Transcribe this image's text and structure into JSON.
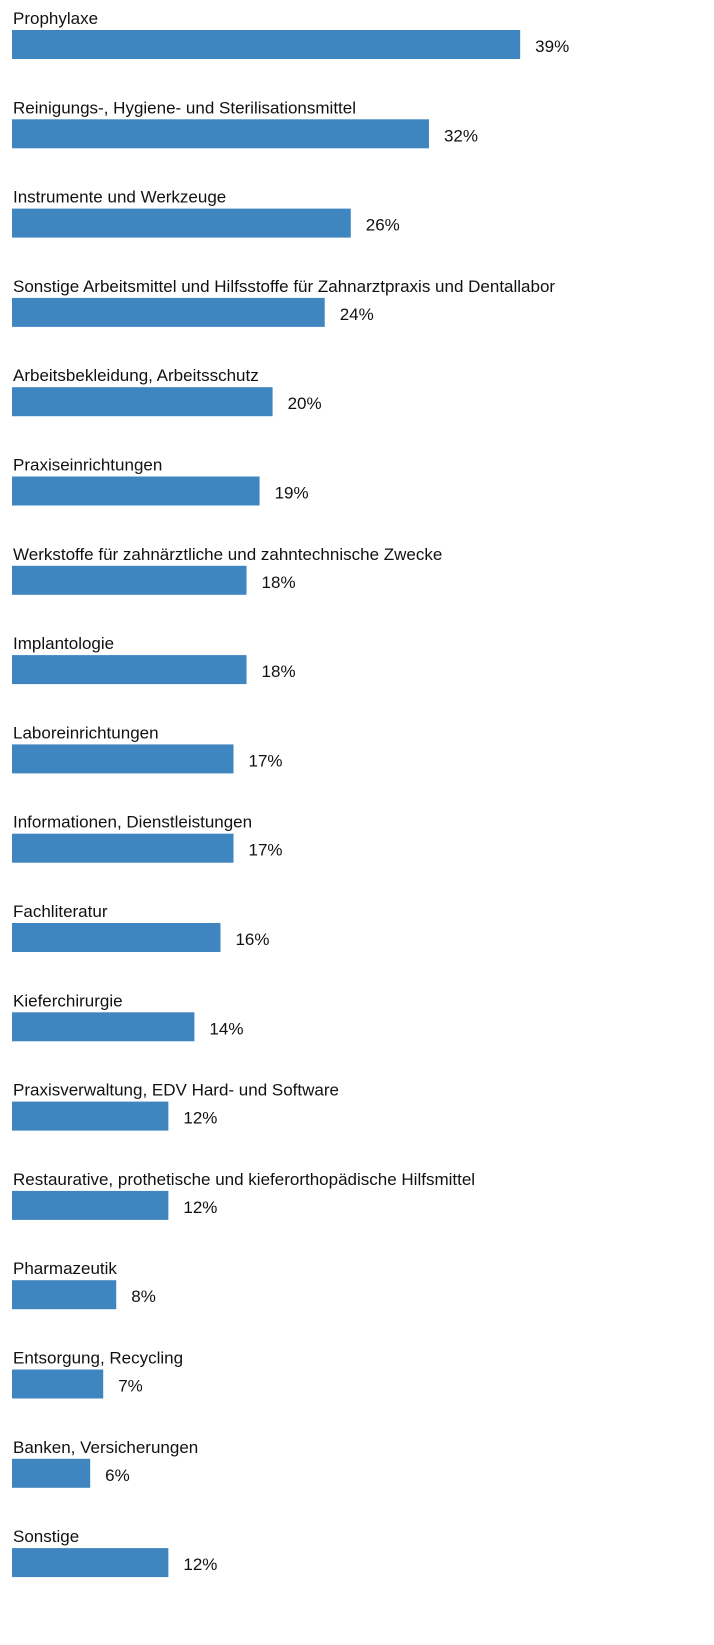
{
  "chart_data": {
    "type": "bar",
    "orientation": "horizontal",
    "color": "#3f86c0",
    "categories": [
      "Prophylaxe",
      "Reinigungs-, Hygiene- und Sterilisationsmittel",
      "Instrumente und Werkzeuge",
      "Sonstige Arbeitsmittel und Hilfsstoffe für Zahnarztpraxis und Dentallabor",
      "Arbeitsbekleidung, Arbeitsschutz",
      "Praxiseinrichtungen",
      "Werkstoffe für zahnärztliche und zahntechnische Zwecke",
      "Implantologie",
      "Laboreinrichtungen",
      "Informationen, Dienstleistungen",
      "Fachliteratur",
      "Kieferchirurgie",
      "Praxisverwaltung, EDV Hard- und Software",
      "Restaurative, prothetische und kieferorthopädische Hilfsmittel",
      "Pharmazeutik",
      "Entsorgung, Recycling",
      "Banken, Versicherungen",
      "Sonstige"
    ],
    "values": [
      39,
      32,
      26,
      24,
      20,
      19,
      18,
      18,
      17,
      17,
      16,
      14,
      12,
      12,
      8,
      7,
      6,
      12
    ],
    "value_labels": [
      "39%",
      "32%",
      "26%",
      "24%",
      "20%",
      "19%",
      "18%",
      "18%",
      "17%",
      "17%",
      "16%",
      "14%",
      "12%",
      "12%",
      "8%",
      "7%",
      "6%",
      "12%"
    ]
  }
}
